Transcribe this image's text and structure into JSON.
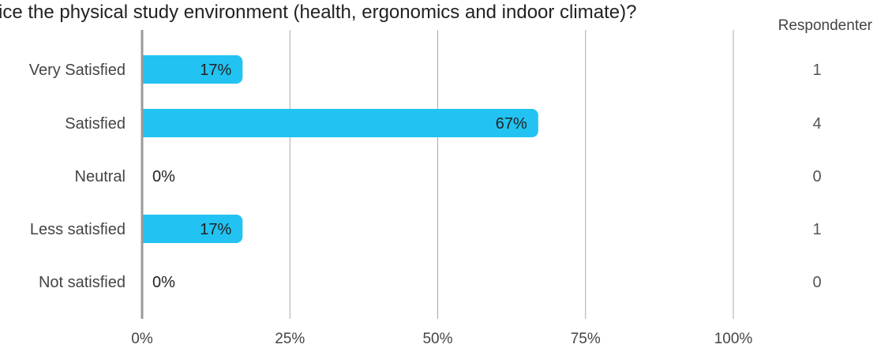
{
  "chart_data": {
    "type": "bar",
    "orientation": "horizontal",
    "title": "ice the physical study environment (health, ergonomics and indoor climate)?",
    "categories": [
      "Very Satisfied",
      "Satisfied",
      "Neutral",
      "Less satisfied",
      "Not satisfied"
    ],
    "values": [
      17,
      67,
      0,
      17,
      0
    ],
    "value_labels": [
      "17%",
      "67%",
      "0%",
      "17%",
      "0%"
    ],
    "counts": [
      1,
      4,
      0,
      1,
      0
    ],
    "counts_header": "Respondenter",
    "xlim": [
      0,
      100
    ],
    "xticks": [
      "0%",
      "25%",
      "50%",
      "75%",
      "100%"
    ],
    "grid": true,
    "legend": "none",
    "colors": {
      "bar": "#22c3f2",
      "grid": "#aaaaaa",
      "axis": "#999999",
      "text": "#444444"
    }
  }
}
